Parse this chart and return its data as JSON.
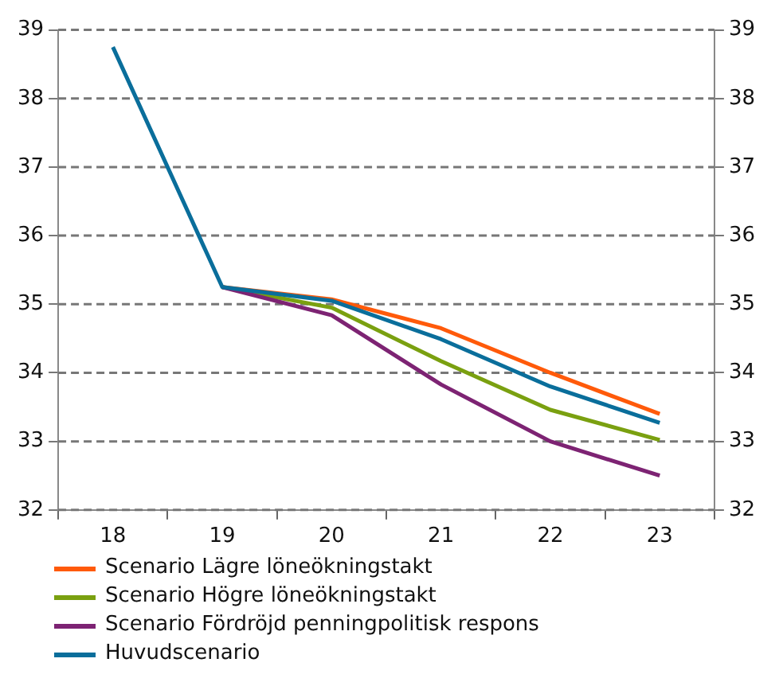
{
  "chart_data": {
    "type": "line",
    "categories": [
      "18",
      "19",
      "20",
      "21",
      "22",
      "23"
    ],
    "series": [
      {
        "name": "Scenario Lägre löneökningstakt",
        "color": "#ff5a0a",
        "values": [
          null,
          35.25,
          35.07,
          34.65,
          34.0,
          33.4
        ]
      },
      {
        "name": "Scenario Högre löneökningstakt",
        "color": "#7aa010",
        "values": [
          null,
          35.25,
          34.95,
          34.17,
          33.46,
          33.02
        ]
      },
      {
        "name": "Scenario Fördröjd penningpolitisk respons",
        "color": "#7d2373",
        "values": [
          null,
          35.25,
          34.84,
          33.83,
          33.0,
          32.5
        ]
      },
      {
        "name": "Huvudscenario",
        "color": "#0a6e9b",
        "values": [
          38.75,
          35.25,
          35.05,
          34.49,
          33.8,
          33.27
        ]
      }
    ],
    "ylim": [
      32,
      39
    ],
    "yticks": [
      32,
      33,
      34,
      35,
      36,
      37,
      38,
      39
    ],
    "y2lim": [
      32,
      39
    ],
    "y2ticks": [
      32,
      33,
      34,
      35,
      36,
      37,
      38,
      39
    ],
    "grid": "y",
    "line_style": "solid",
    "marker": "none",
    "legend": "bottom"
  }
}
